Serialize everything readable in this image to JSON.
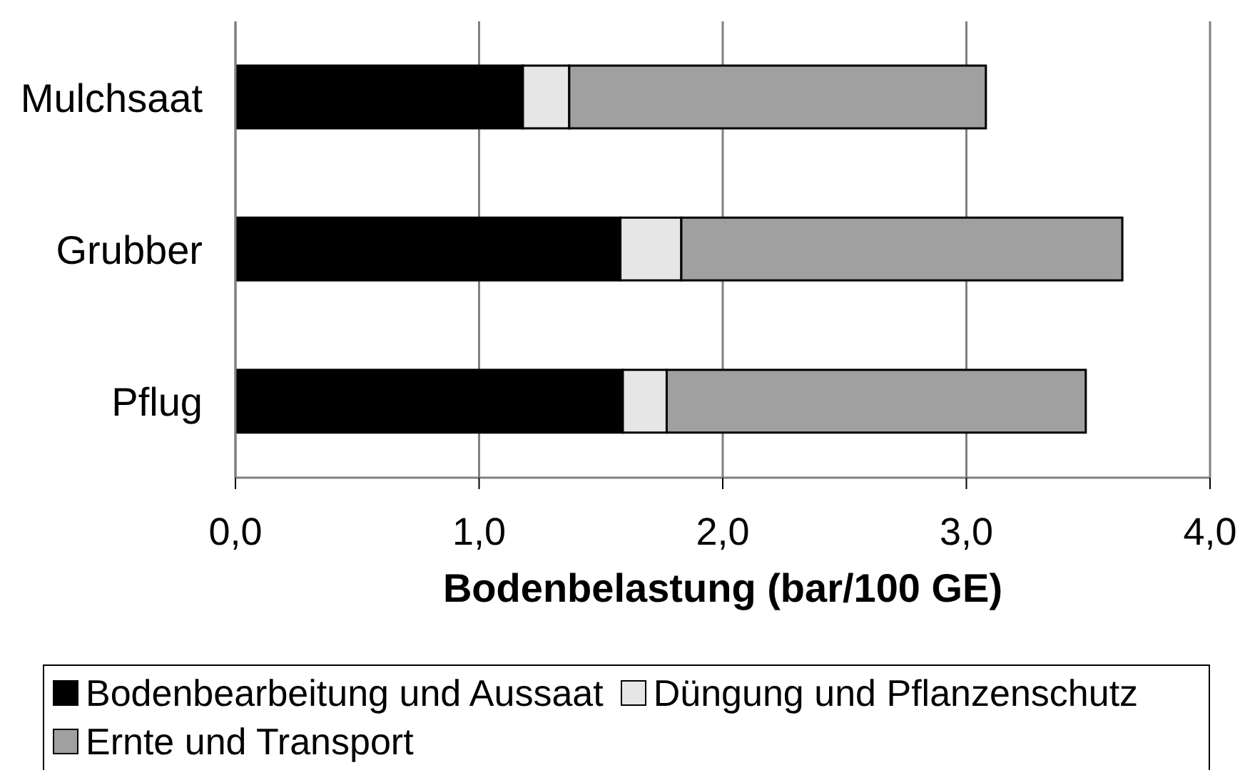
{
  "chart_data": {
    "type": "bar",
    "orientation": "horizontal",
    "stacked": true,
    "categories": [
      "Mulchsaat",
      "Grubber",
      "Pflug"
    ],
    "series": [
      {
        "name": "Bodenbearbeitung und Aussaat",
        "color": "#000000",
        "values": [
          1.18,
          1.58,
          1.59
        ]
      },
      {
        "name": "Düngung und Pflanzenschutz",
        "color": "#e6e6e6",
        "values": [
          0.19,
          0.25,
          0.18
        ]
      },
      {
        "name": "Ernte und Transport",
        "color": "#a0a0a0",
        "values": [
          1.71,
          1.81,
          1.72
        ]
      }
    ],
    "xlabel": "Bodenbelastung (bar/100 GE)",
    "xlim": [
      0,
      4
    ],
    "xticks": [
      {
        "value": 0,
        "label": "0,0"
      },
      {
        "value": 1,
        "label": "1,0"
      },
      {
        "value": 2,
        "label": "2,0"
      },
      {
        "value": 3,
        "label": "3,0"
      },
      {
        "value": 4,
        "label": "4,0"
      }
    ],
    "grid": "x",
    "legend": "bottom"
  }
}
